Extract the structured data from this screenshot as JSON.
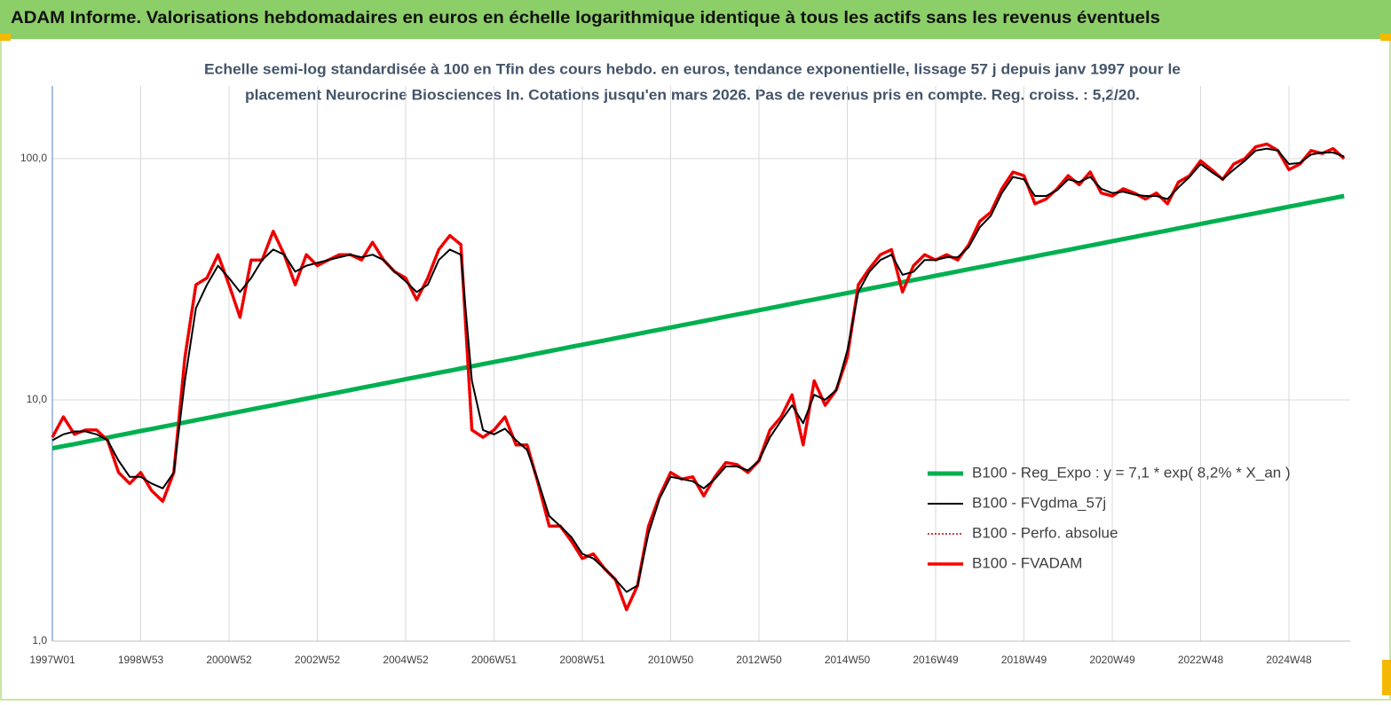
{
  "chart_data": {
    "type": "line",
    "title": "ADAM Informe. Valorisations hebdomadaires en euros en échelle logarithmique identique à tous les actifs sans les revenus éventuels",
    "subtitle": [
      "Echelle semi-log standardisée à 100 en Tfin des cours hebdo. en euros, tendance exponentielle, lissage 57 j depuis janv 1997 pour le",
      "placement Neurocrine Biosciences In. Cotations jusqu'en mars 2026. Pas de revenus pris en compte. Reg. croiss. : 5,2/20."
    ],
    "log_scale": true,
    "grid": true,
    "legend": "right",
    "ylim": [
      1,
      200
    ],
    "yticks": [
      {
        "value": 1,
        "label": "1,0"
      },
      {
        "value": 10,
        "label": "10,0"
      },
      {
        "value": 100,
        "label": "100,0"
      }
    ],
    "categories": [
      "1997W01",
      null,
      null,
      null,
      null,
      null,
      null,
      null,
      "1998W53",
      null,
      null,
      null,
      null,
      null,
      null,
      null,
      "2000W52",
      null,
      null,
      null,
      null,
      null,
      null,
      null,
      "2002W52",
      null,
      null,
      null,
      null,
      null,
      null,
      null,
      "2004W52",
      null,
      null,
      null,
      null,
      null,
      null,
      null,
      "2006W51",
      null,
      null,
      null,
      null,
      null,
      null,
      null,
      "2008W51",
      null,
      null,
      null,
      null,
      null,
      null,
      null,
      "2010W50",
      null,
      null,
      null,
      null,
      null,
      null,
      null,
      "2012W50",
      null,
      null,
      null,
      null,
      null,
      null,
      null,
      "2014W50",
      null,
      null,
      null,
      null,
      null,
      null,
      null,
      "2016W49",
      null,
      null,
      null,
      null,
      null,
      null,
      null,
      "2018W49",
      null,
      null,
      null,
      null,
      null,
      null,
      null,
      "2020W49",
      null,
      null,
      null,
      null,
      null,
      null,
      null,
      "2022W48",
      null,
      null,
      null,
      null,
      null,
      null,
      null,
      "2024W48",
      null,
      null,
      null,
      null,
      null
    ],
    "series": [
      {
        "name": "B100 - Reg_Expo : y = 7,1 * exp( 8,2% *  X_an )",
        "color": "#00b050",
        "line_width": 5,
        "values": [
          6.3,
          6.43,
          6.56,
          6.7,
          6.84,
          6.98,
          7.13,
          7.28,
          7.43,
          7.58,
          7.74,
          7.9,
          8.07,
          8.24,
          8.41,
          8.58,
          8.76,
          8.94,
          9.13,
          9.32,
          9.51,
          9.71,
          9.91,
          10.12,
          10.33,
          10.54,
          10.76,
          10.99,
          11.22,
          11.45,
          11.69,
          11.93,
          12.18,
          12.43,
          12.69,
          12.96,
          13.22,
          13.5,
          13.78,
          14.07,
          14.36,
          14.66,
          14.96,
          15.27,
          15.59,
          15.92,
          16.25,
          16.59,
          16.93,
          17.28,
          17.64,
          18.01,
          18.38,
          18.77,
          19.16,
          19.55,
          19.96,
          20.38,
          20.8,
          21.23,
          21.67,
          22.12,
          22.58,
          23.05,
          23.53,
          24.02,
          24.52,
          25.03,
          25.55,
          26.08,
          26.62,
          27.18,
          27.74,
          28.32,
          28.91,
          29.51,
          30.12,
          30.75,
          31.39,
          32.04,
          32.71,
          33.39,
          34.08,
          34.79,
          35.52,
          36.26,
          37.01,
          37.78,
          38.56,
          39.36,
          40.18,
          41.02,
          41.87,
          42.74,
          43.63,
          44.54,
          45.47,
          46.42,
          47.38,
          48.37,
          49.37,
          50.4,
          51.45,
          52.52,
          53.61,
          54.73,
          55.86,
          57.03,
          58.21,
          59.42,
          60.66,
          61.92,
          63.2,
          64.51,
          65.86,
          67.23,
          68.62,
          70.05
        ]
      },
      {
        "name": "B100 - FVgdma_57j",
        "color": "#000000",
        "line_width": 2,
        "values": [
          6.8,
          7.2,
          7.4,
          7.4,
          7.2,
          6.8,
          5.6,
          4.8,
          4.8,
          4.5,
          4.3,
          5.0,
          12,
          24,
          30,
          36,
          32,
          28,
          32,
          38,
          42,
          40,
          34,
          36,
          37,
          38,
          39,
          40,
          39,
          40,
          38,
          34,
          31,
          28,
          30,
          38,
          42,
          40,
          12,
          7.5,
          7.2,
          7.6,
          6.8,
          6.2,
          4.6,
          3.3,
          3.0,
          2.7,
          2.3,
          2.2,
          2.0,
          1.8,
          1.6,
          1.7,
          2.8,
          3.9,
          4.8,
          4.7,
          4.6,
          4.3,
          4.7,
          5.3,
          5.3,
          5.1,
          5.6,
          7.0,
          8.2,
          9.5,
          8.0,
          10.5,
          10,
          11,
          16,
          28,
          34,
          38,
          40,
          33,
          34,
          38,
          38,
          39,
          39,
          43,
          52,
          58,
          72,
          84,
          82,
          70,
          70,
          74,
          82,
          80,
          84,
          75,
          72,
          73,
          71,
          70,
          70,
          68,
          76,
          84,
          95,
          88,
          82,
          90,
          98,
          108,
          110,
          108,
          95,
          96,
          104,
          106,
          106,
          102
        ]
      },
      {
        "name": "B100 - Perfo. absolue",
        "color": "#c00000",
        "line_width": 1.5,
        "dotted": true,
        "values": [
          7.0,
          8.5,
          7.2,
          7.5,
          7.5,
          6.8,
          5.0,
          4.5,
          5.0,
          4.2,
          3.8,
          5.0,
          15,
          30,
          32,
          40,
          30,
          22,
          38,
          38,
          50,
          40,
          30,
          40,
          36,
          38,
          40,
          40,
          38,
          45,
          38,
          34,
          32,
          26,
          32,
          42,
          48,
          44,
          7.5,
          7,
          7.5,
          8.5,
          6.5,
          6.5,
          4.5,
          3.0,
          3.0,
          2.6,
          2.2,
          2.3,
          2.0,
          1.8,
          1.35,
          1.7,
          3.0,
          4.0,
          5.0,
          4.7,
          4.8,
          4.0,
          4.8,
          5.5,
          5.4,
          5.0,
          5.6,
          7.5,
          8.5,
          10.5,
          6.5,
          12,
          9.5,
          11,
          15,
          30,
          35,
          40,
          42,
          28,
          36,
          40,
          38,
          40,
          38,
          44,
          55,
          60,
          75,
          88,
          85,
          65,
          68,
          75,
          85,
          78,
          88,
          72,
          70,
          75,
          72,
          68,
          72,
          65,
          80,
          85,
          98,
          90,
          82,
          95,
          100,
          112,
          115,
          108,
          90,
          95,
          108,
          105,
          110,
          100
        ]
      },
      {
        "name": "B100 - FVADAM",
        "color": "#ff0000",
        "line_width": 3.5,
        "values": [
          7.0,
          8.5,
          7.2,
          7.5,
          7.5,
          6.8,
          5.0,
          4.5,
          5.0,
          4.2,
          3.8,
          5.0,
          15,
          30,
          32,
          40,
          30,
          22,
          38,
          38,
          50,
          40,
          30,
          40,
          36,
          38,
          40,
          40,
          38,
          45,
          38,
          34,
          32,
          26,
          32,
          42,
          48,
          44,
          7.5,
          7,
          7.5,
          8.5,
          6.5,
          6.5,
          4.5,
          3.0,
          3.0,
          2.6,
          2.2,
          2.3,
          2.0,
          1.8,
          1.35,
          1.7,
          3.0,
          4.0,
          5.0,
          4.7,
          4.8,
          4.0,
          4.8,
          5.5,
          5.4,
          5.0,
          5.6,
          7.5,
          8.5,
          10.5,
          6.5,
          12,
          9.5,
          11,
          15,
          30,
          35,
          40,
          42,
          28,
          36,
          40,
          38,
          40,
          38,
          44,
          55,
          60,
          75,
          88,
          85,
          65,
          68,
          75,
          85,
          78,
          88,
          72,
          70,
          75,
          72,
          68,
          72,
          65,
          80,
          85,
          98,
          90,
          82,
          95,
          100,
          112,
          115,
          108,
          90,
          95,
          108,
          105,
          110,
          100
        ]
      }
    ]
  }
}
